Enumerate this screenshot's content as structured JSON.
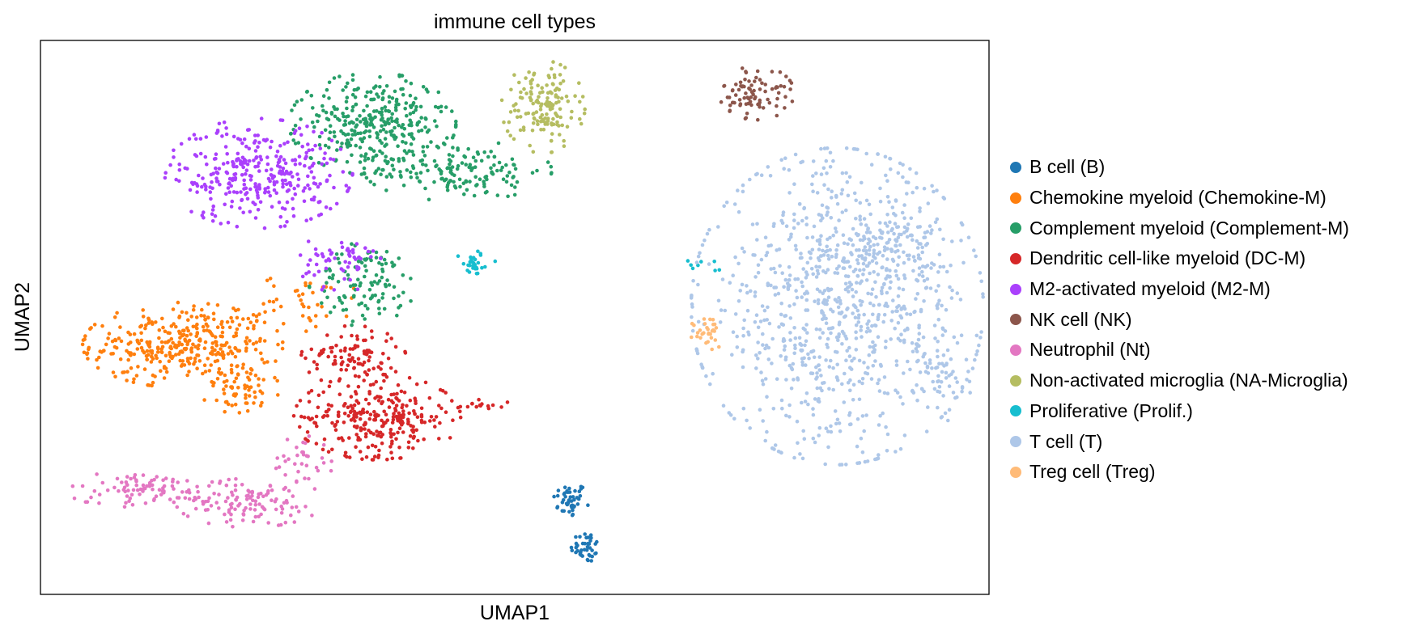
{
  "chart_data": {
    "type": "scatter",
    "title": "immune cell types",
    "xlabel": "UMAP1",
    "ylabel": "UMAP2",
    "xlim": [
      0,
      100
    ],
    "ylim": [
      0,
      100
    ],
    "ticks": "none",
    "grid": false,
    "legend_position": "right",
    "series": [
      {
        "name": "B cell (B)",
        "color": "#1f77b4",
        "clusters": [
          {
            "center": [
              55.8,
              17.0
            ],
            "spread": [
              0.9,
              1.6
            ],
            "n": 45
          },
          {
            "center": [
              57.5,
              8.5
            ],
            "spread": [
              0.8,
              1.4
            ],
            "n": 40
          }
        ]
      },
      {
        "name": "Chemokine myeloid (Chemokine-M)",
        "color": "#ff7f0e",
        "clusters": [
          {
            "center": [
              15.0,
              45.0
            ],
            "spread": [
              4.8,
              3.5
            ],
            "n": 360
          },
          {
            "center": [
              21.5,
              36.5
            ],
            "spread": [
              2.0,
              2.2
            ],
            "n": 60
          },
          {
            "center": [
              28.0,
              53.0
            ],
            "spread": [
              2.5,
              2.5
            ],
            "n": 40
          }
        ]
      },
      {
        "name": "Complement myeloid (Complement-M)",
        "color": "#279e68",
        "clusters": [
          {
            "center": [
              35.0,
              85.0
            ],
            "spread": [
              4.0,
              4.2
            ],
            "n": 320
          },
          {
            "center": [
              44.0,
              76.5
            ],
            "spread": [
              4.5,
              2.5
            ],
            "n": 160
          },
          {
            "center": [
              34.5,
              56.0
            ],
            "spread": [
              2.8,
              3.5
            ],
            "n": 110
          }
        ]
      },
      {
        "name": "Dendritic cell-like myeloid (DC-M)",
        "color": "#d62728",
        "clusters": [
          {
            "center": [
              35.5,
              32.0
            ],
            "spread": [
              4.0,
              3.5
            ],
            "n": 280
          },
          {
            "center": [
              33.0,
              43.0
            ],
            "spread": [
              2.5,
              2.5
            ],
            "n": 100
          },
          {
            "center": [
              46.5,
              34.5
            ],
            "spread": [
              1.4,
              0.6
            ],
            "n": 15
          }
        ]
      },
      {
        "name": "M2-activated myeloid  (M2-M)",
        "color": "#aa40fc",
        "clusters": [
          {
            "center": [
              23.0,
              76.0
            ],
            "spread": [
              4.5,
              4.5
            ],
            "n": 330
          },
          {
            "center": [
              31.5,
              60.0
            ],
            "spread": [
              2.0,
              2.5
            ],
            "n": 60
          }
        ]
      },
      {
        "name": "NK cell (NK)",
        "color": "#8c564b",
        "clusters": [
          {
            "center": [
              75.5,
              90.5
            ],
            "spread": [
              1.8,
              2.2
            ],
            "n": 85
          }
        ]
      },
      {
        "name": "Neutrophil (Nt)",
        "color": "#e377c2",
        "clusters": [
          {
            "center": [
              11.0,
              19.0
            ],
            "spread": [
              4.0,
              1.5
            ],
            "n": 90
          },
          {
            "center": [
              22.0,
              16.5
            ],
            "spread": [
              3.5,
              2.0
            ],
            "n": 110
          },
          {
            "center": [
              27.5,
              24.0
            ],
            "spread": [
              1.5,
              2.5
            ],
            "n": 35
          }
        ]
      },
      {
        "name": "Non-activated microglia (NA-Microglia)",
        "color": "#b5bd61",
        "clusters": [
          {
            "center": [
              53.0,
              88.0
            ],
            "spread": [
              2.0,
              3.8
            ],
            "n": 150
          }
        ]
      },
      {
        "name": "Proliferative (Prolif.)",
        "color": "#17becf",
        "clusters": [
          {
            "center": [
              45.8,
              59.5
            ],
            "spread": [
              1.0,
              1.2
            ],
            "n": 30
          },
          {
            "center": [
              70.0,
              59.5
            ],
            "spread": [
              1.0,
              0.6
            ],
            "n": 8
          }
        ]
      },
      {
        "name": "T cell (T)",
        "color": "#aec7e8",
        "clusters": [
          {
            "center": [
              84.0,
              52.0
            ],
            "spread": [
              7.0,
              13.0
            ],
            "n": 900
          },
          {
            "center": [
              89.5,
              63.0
            ],
            "spread": [
              3.0,
              3.5
            ],
            "n": 120
          },
          {
            "center": [
              95.0,
              40.0
            ],
            "spread": [
              1.5,
              4.0
            ],
            "n": 60
          }
        ]
      },
      {
        "name": "Treg cell (Treg)",
        "color": "#ffbb78",
        "clusters": [
          {
            "center": [
              70.5,
              47.5
            ],
            "spread": [
              0.9,
              1.5
            ],
            "n": 30
          }
        ]
      }
    ]
  }
}
